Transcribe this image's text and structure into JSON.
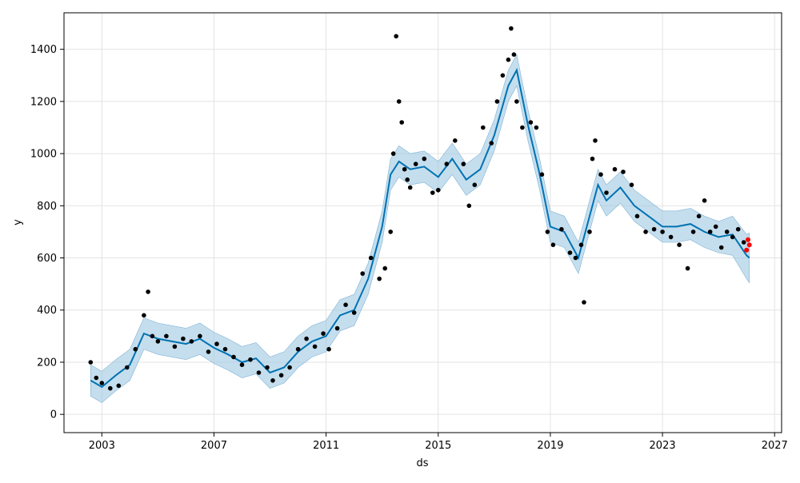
{
  "chart_data": {
    "type": "scatter",
    "xlabel": "ds",
    "ylabel": "y",
    "xlim": [
      2001.65,
      2027.25
    ],
    "ylim": [
      -70,
      1540
    ],
    "grid": true,
    "x_ticks": [
      2003,
      2007,
      2011,
      2015,
      2019,
      2023,
      2027
    ],
    "y_ticks": [
      0,
      200,
      400,
      600,
      800,
      1000,
      1200,
      1400
    ],
    "colors": {
      "observed": "#000000",
      "recent": "#ff0000",
      "forecast_line": "#0072B2",
      "uncertainty_band": "#9fc8e2"
    },
    "series": [
      {
        "role": "forecast",
        "x": [
          2002.6,
          2003.0,
          2003.5,
          2004.0,
          2004.5,
          2005.0,
          2005.5,
          2006.0,
          2006.5,
          2007.0,
          2007.5,
          2008.0,
          2008.5,
          2009.0,
          2009.5,
          2010.0,
          2010.5,
          2011.0,
          2011.5,
          2012.0,
          2012.5,
          2013.0,
          2013.3,
          2013.6,
          2014.0,
          2014.5,
          2015.0,
          2015.5,
          2016.0,
          2016.5,
          2017.0,
          2017.5,
          2017.8,
          2018.2,
          2018.6,
          2019.0,
          2019.5,
          2020.0,
          2020.4,
          2020.7,
          2021.0,
          2021.5,
          2022.0,
          2022.5,
          2023.0,
          2023.5,
          2024.0,
          2024.5,
          2025.0,
          2025.5,
          2026.0,
          2026.1
        ],
        "yhat": [
          130,
          105,
          150,
          190,
          310,
          290,
          280,
          270,
          290,
          255,
          230,
          200,
          215,
          160,
          180,
          240,
          280,
          300,
          380,
          400,
          520,
          720,
          920,
          970,
          940,
          950,
          910,
          980,
          900,
          940,
          1070,
          1260,
          1320,
          1110,
          930,
          720,
          700,
          600,
          760,
          880,
          820,
          870,
          800,
          760,
          720,
          720,
          730,
          700,
          680,
          690,
          610,
          600
        ],
        "yhat_lower": [
          70,
          45,
          90,
          130,
          250,
          230,
          220,
          210,
          230,
          195,
          170,
          140,
          155,
          100,
          120,
          180,
          220,
          240,
          320,
          340,
          460,
          660,
          860,
          910,
          880,
          890,
          850,
          920,
          840,
          880,
          1010,
          1200,
          1260,
          1050,
          870,
          660,
          640,
          540,
          700,
          820,
          760,
          810,
          740,
          700,
          660,
          660,
          670,
          640,
          620,
          610,
          520,
          505
        ],
        "yhat_upper": [
          190,
          165,
          210,
          250,
          370,
          350,
          340,
          330,
          350,
          315,
          290,
          260,
          275,
          220,
          240,
          300,
          340,
          360,
          440,
          460,
          580,
          780,
          980,
          1030,
          1000,
          1010,
          970,
          1040,
          960,
          1000,
          1130,
          1320,
          1380,
          1170,
          990,
          780,
          760,
          660,
          820,
          940,
          880,
          930,
          860,
          820,
          780,
          780,
          790,
          760,
          740,
          760,
          690,
          695
        ]
      },
      {
        "role": "observed",
        "x": [
          2002.6,
          2002.8,
          2003.0,
          2003.3,
          2003.6,
          2003.9,
          2004.2,
          2004.5,
          2004.65,
          2004.8,
          2005.0,
          2005.3,
          2005.6,
          2005.9,
          2006.2,
          2006.5,
          2006.8,
          2007.1,
          2007.4,
          2007.7,
          2008.0,
          2008.3,
          2008.6,
          2008.9,
          2009.1,
          2009.4,
          2009.7,
          2010.0,
          2010.3,
          2010.6,
          2010.9,
          2011.1,
          2011.4,
          2011.7,
          2012.0,
          2012.3,
          2012.6,
          2012.9,
          2013.1,
          2013.3,
          2013.4,
          2013.5,
          2013.6,
          2013.7,
          2013.8,
          2013.9,
          2014.0,
          2014.2,
          2014.5,
          2014.8,
          2015.0,
          2015.3,
          2015.6,
          2015.9,
          2016.1,
          2016.3,
          2016.6,
          2016.9,
          2017.1,
          2017.3,
          2017.5,
          2017.6,
          2017.7,
          2017.8,
          2018.0,
          2018.3,
          2018.5,
          2018.7,
          2018.9,
          2019.1,
          2019.4,
          2019.7,
          2019.9,
          2020.1,
          2020.2,
          2020.4,
          2020.5,
          2020.6,
          2020.8,
          2021.0,
          2021.3,
          2021.6,
          2021.9,
          2022.1,
          2022.4,
          2022.7,
          2023.0,
          2023.3,
          2023.6,
          2023.9,
          2024.1,
          2024.3,
          2024.5,
          2024.7,
          2024.9,
          2025.1,
          2025.3,
          2025.5,
          2025.7,
          2025.9
        ],
        "y": [
          200,
          140,
          120,
          100,
          110,
          180,
          250,
          380,
          470,
          300,
          280,
          300,
          260,
          290,
          280,
          300,
          240,
          270,
          250,
          220,
          190,
          210,
          160,
          180,
          130,
          150,
          180,
          250,
          290,
          260,
          310,
          250,
          330,
          420,
          390,
          540,
          600,
          520,
          560,
          700,
          1000,
          1450,
          1200,
          1120,
          940,
          900,
          870,
          960,
          980,
          850,
          860,
          960,
          1050,
          960,
          800,
          880,
          1100,
          1040,
          1200,
          1300,
          1360,
          1480,
          1380,
          1200,
          1100,
          1120,
          1100,
          920,
          700,
          650,
          710,
          620,
          600,
          650,
          430,
          700,
          980,
          1050,
          920,
          850,
          940,
          930,
          880,
          760,
          700,
          710,
          700,
          680,
          650,
          560,
          700,
          760,
          820,
          700,
          720,
          640,
          700,
          680,
          710,
          660
        ],
        "note": ""
      },
      {
        "role": "recent",
        "x": [
          2026.0,
          2026.05,
          2026.1
        ],
        "y": [
          630,
          670,
          650
        ]
      }
    ]
  }
}
